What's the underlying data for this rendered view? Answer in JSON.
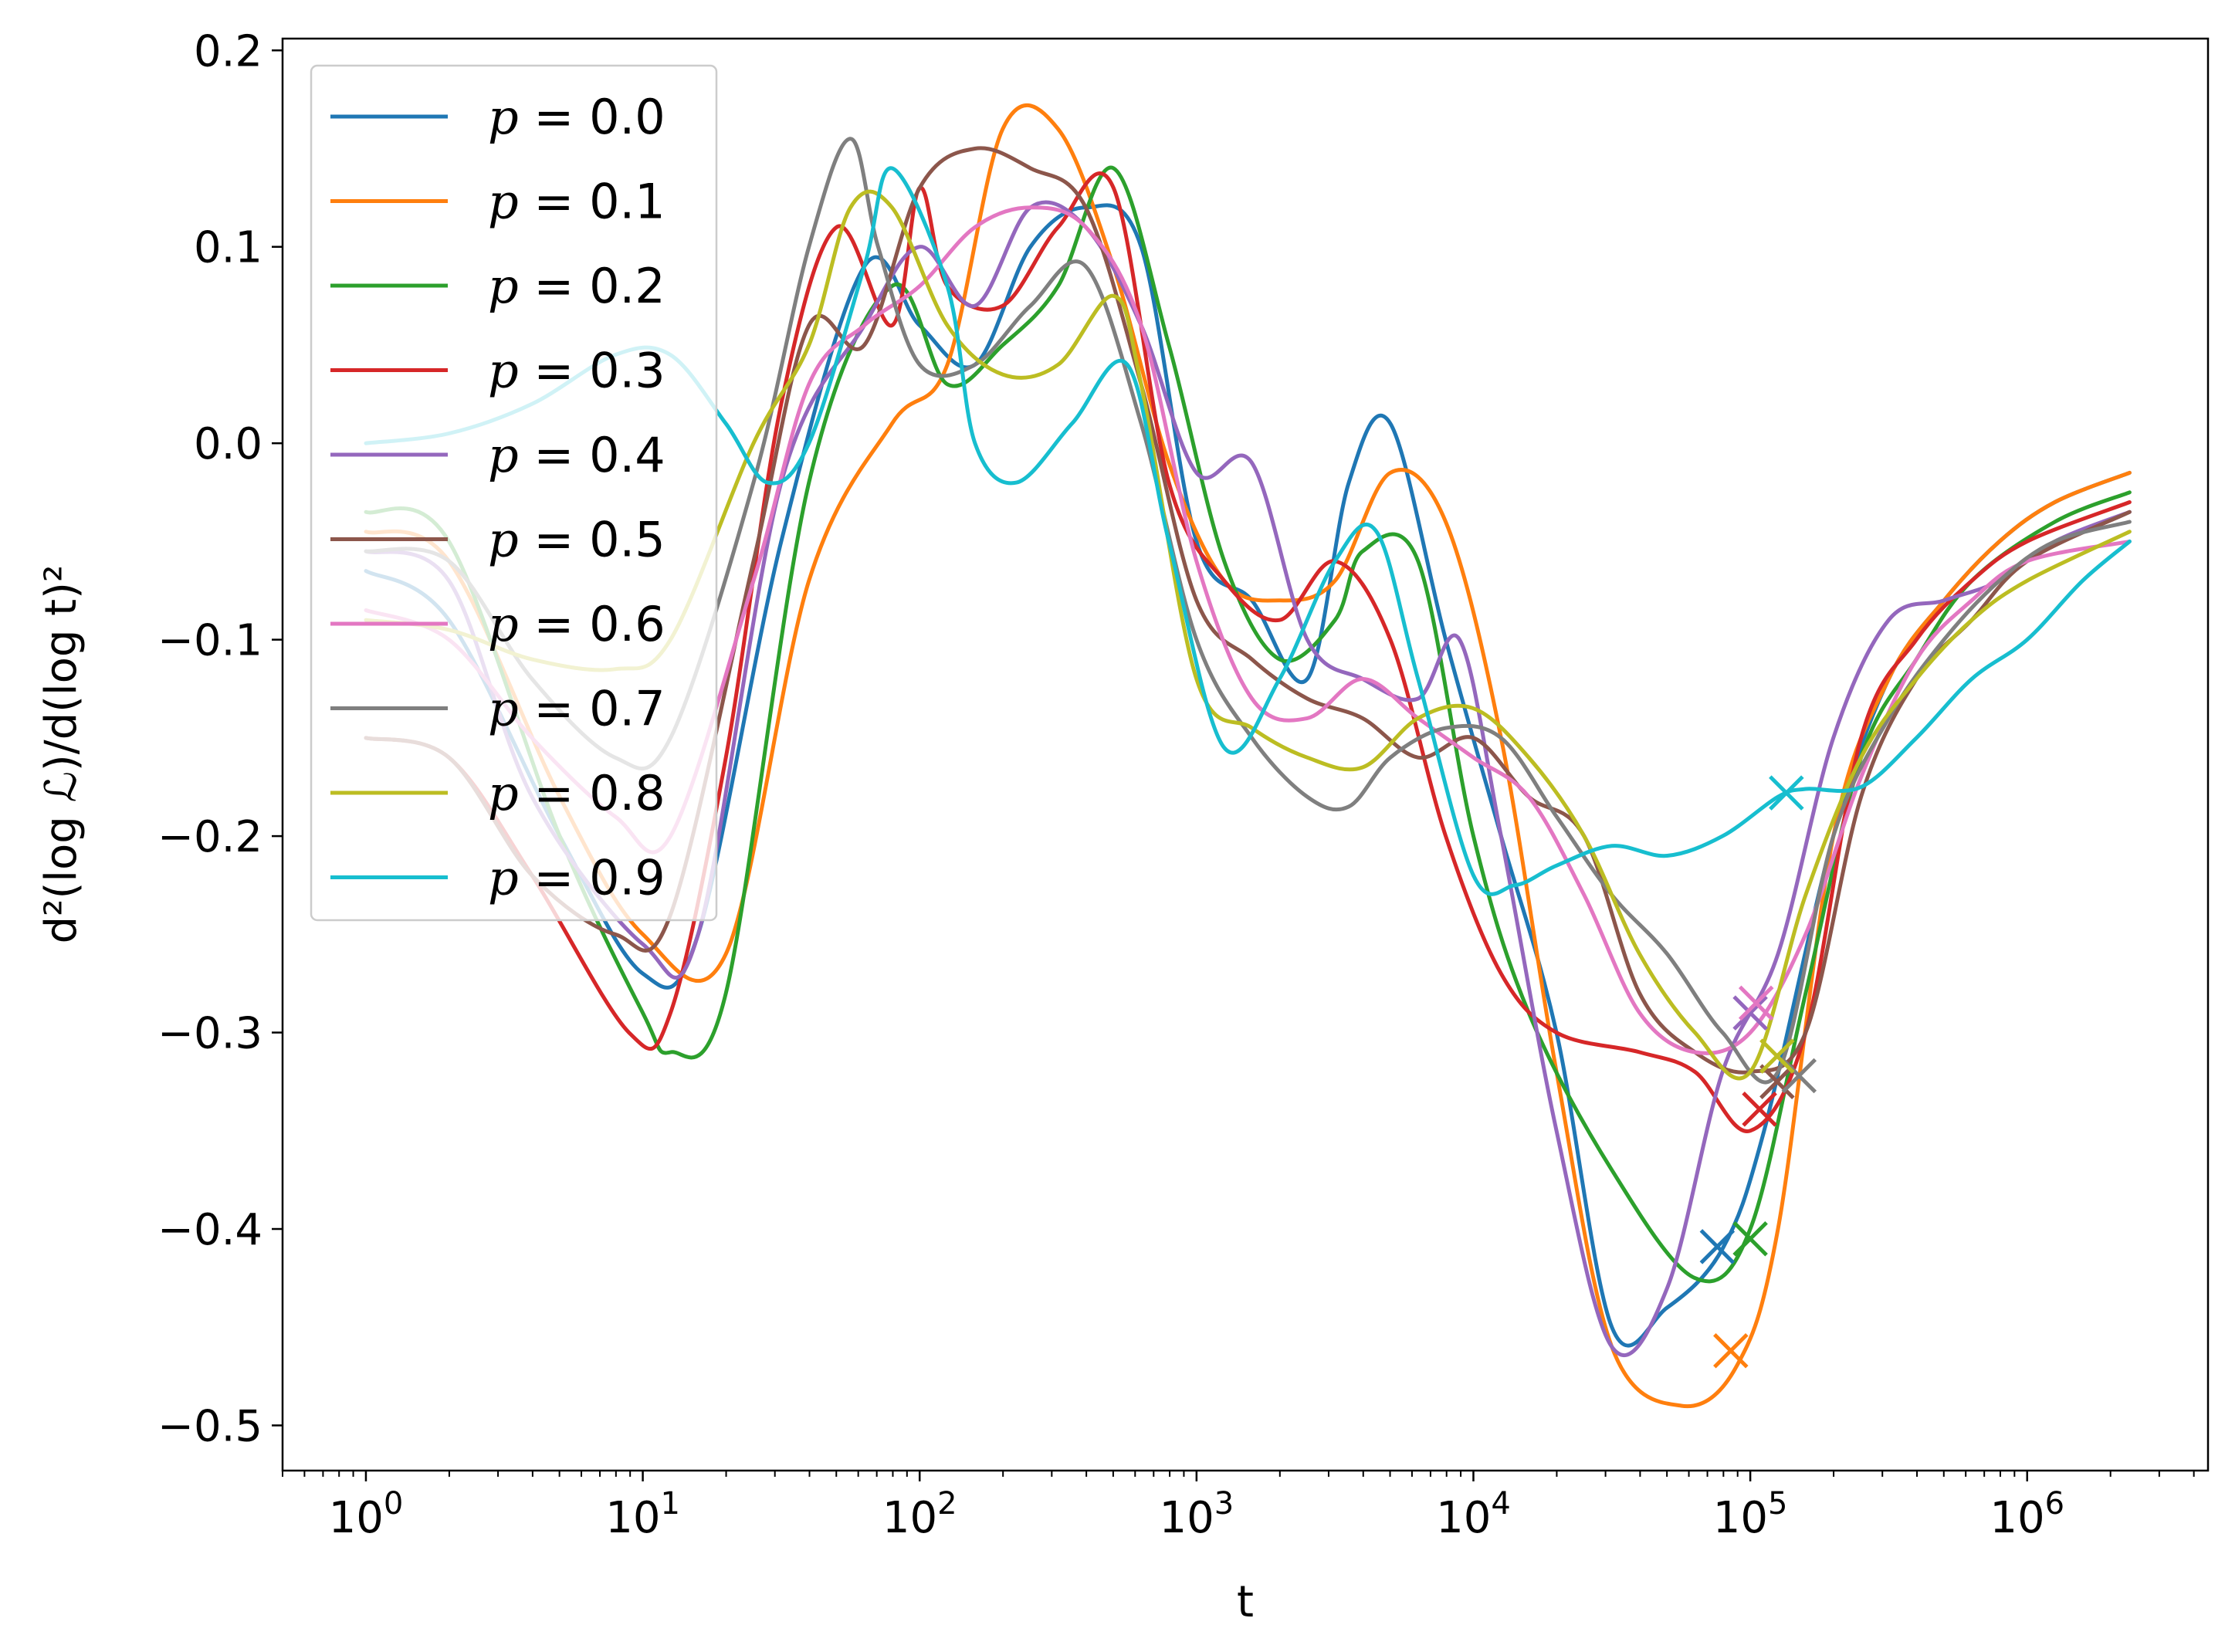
{
  "chart_data": {
    "type": "line",
    "title": "",
    "xlabel": "t",
    "ylabel": "d²(log ℒ)/d(log t)²",
    "xscale": "log",
    "xlim": [
      0.5,
      4500000
    ],
    "ylim": [
      -0.523,
      0.206
    ],
    "x_ticks": [
      {
        "value": 1,
        "base": "10",
        "exp": "0"
      },
      {
        "value": 10,
        "base": "10",
        "exp": "1"
      },
      {
        "value": 100,
        "base": "10",
        "exp": "2"
      },
      {
        "value": 1000,
        "base": "10",
        "exp": "3"
      },
      {
        "value": 10000,
        "base": "10",
        "exp": "4"
      },
      {
        "value": 100000,
        "base": "10",
        "exp": "5"
      },
      {
        "value": 1000000,
        "base": "10",
        "exp": "6"
      }
    ],
    "y_ticks": [
      {
        "value": 0.2,
        "label": "0.2"
      },
      {
        "value": 0.1,
        "label": "0.1"
      },
      {
        "value": 0.0,
        "label": "0.0"
      },
      {
        "value": -0.1,
        "label": "−0.1"
      },
      {
        "value": -0.2,
        "label": "−0.2"
      },
      {
        "value": -0.3,
        "label": "−0.3"
      },
      {
        "value": -0.4,
        "label": "−0.4"
      },
      {
        "value": -0.5,
        "label": "−0.5"
      }
    ],
    "grid": false,
    "legend_position": "top-left",
    "series": [
      {
        "name": "p = 0.0",
        "p": "p",
        "rest": " = 0.0",
        "color": "#1f77b4",
        "log10_t": [
          0,
          0.3,
          0.7,
          1.0,
          1.2,
          1.5,
          1.8,
          2.0,
          2.2,
          2.4,
          2.6,
          2.8,
          3.0,
          3.2,
          3.4,
          3.55,
          3.7,
          3.9,
          4.1,
          4.3,
          4.5,
          4.7,
          4.9,
          5.05,
          5.3,
          5.5,
          5.7,
          5.9,
          6.1,
          6.37
        ],
        "y": [
          -0.065,
          -0.09,
          -0.2,
          -0.27,
          -0.25,
          -0.05,
          0.09,
          0.06,
          0.04,
          0.1,
          0.12,
          0.1,
          -0.05,
          -0.08,
          -0.12,
          -0.02,
          0.01,
          -0.1,
          -0.2,
          -0.3,
          -0.45,
          -0.44,
          -0.41,
          -0.35,
          -0.2,
          -0.12,
          -0.08,
          -0.05,
          -0.03,
          -0.015
        ],
        "marker": {
          "t": 76000,
          "y": -0.409
        }
      },
      {
        "name": "p = 0.1",
        "p": "p",
        "rest": " = 0.1",
        "color": "#ff7f0e",
        "log10_t": [
          0,
          0.3,
          0.7,
          1.0,
          1.3,
          1.6,
          1.9,
          2.1,
          2.3,
          2.5,
          2.7,
          2.9,
          3.1,
          3.3,
          3.5,
          3.7,
          3.9,
          4.1,
          4.3,
          4.5,
          4.75,
          4.95,
          5.1,
          5.3,
          5.5,
          5.7,
          5.9,
          6.1,
          6.37
        ],
        "y": [
          -0.045,
          -0.06,
          -0.18,
          -0.25,
          -0.26,
          -0.07,
          0.01,
          0.04,
          0.16,
          0.16,
          0.09,
          -0.01,
          -0.07,
          -0.08,
          -0.07,
          -0.015,
          -0.04,
          -0.15,
          -0.32,
          -0.46,
          -0.49,
          -0.47,
          -0.4,
          -0.2,
          -0.12,
          -0.08,
          -0.05,
          -0.03,
          -0.015
        ],
        "marker": {
          "t": 85000,
          "y": -0.462
        }
      },
      {
        "name": "p = 0.2",
        "p": "p",
        "rest": " = 0.2",
        "color": "#2ca02c",
        "log10_t": [
          0,
          0.3,
          0.7,
          1.0,
          1.1,
          1.3,
          1.6,
          1.9,
          2.1,
          2.3,
          2.5,
          2.7,
          2.9,
          3.1,
          3.3,
          3.5,
          3.6,
          3.8,
          4.0,
          4.2,
          4.5,
          4.8,
          5.0,
          5.2,
          5.4,
          5.6,
          5.8,
          6.1,
          6.37
        ],
        "y": [
          -0.035,
          -0.05,
          -0.2,
          -0.29,
          -0.31,
          -0.28,
          -0.02,
          0.08,
          0.03,
          0.05,
          0.08,
          0.14,
          0.05,
          -0.06,
          -0.11,
          -0.09,
          -0.055,
          -0.06,
          -0.2,
          -0.29,
          -0.37,
          -0.425,
          -0.4,
          -0.28,
          -0.16,
          -0.11,
          -0.07,
          -0.04,
          -0.025
        ],
        "marker": {
          "t": 100000,
          "y": -0.405
        }
      },
      {
        "name": "p = 0.3",
        "p": "p",
        "rest": " = 0.3",
        "color": "#d62728",
        "log10_t": [
          0,
          0.3,
          0.6,
          0.95,
          1.1,
          1.3,
          1.5,
          1.7,
          1.9,
          2.0,
          2.1,
          2.3,
          2.5,
          2.7,
          2.9,
          3.1,
          3.3,
          3.5,
          3.7,
          3.9,
          4.1,
          4.3,
          4.6,
          4.8,
          5.0,
          5.2,
          5.4,
          5.6,
          5.8,
          6.0,
          6.37
        ],
        "y": [
          -0.15,
          -0.16,
          -0.22,
          -0.3,
          -0.29,
          -0.16,
          0.02,
          0.11,
          0.06,
          0.13,
          0.08,
          0.07,
          0.11,
          0.13,
          -0.02,
          -0.07,
          -0.09,
          -0.06,
          -0.1,
          -0.2,
          -0.27,
          -0.3,
          -0.31,
          -0.32,
          -0.35,
          -0.3,
          -0.15,
          -0.1,
          -0.07,
          -0.05,
          -0.03
        ],
        "marker": {
          "t": 108000,
          "y": -0.339
        }
      },
      {
        "name": "p = 0.4",
        "p": "p",
        "rest": " = 0.4",
        "color": "#9467bd",
        "log10_t": [
          0,
          0.3,
          0.6,
          1.0,
          1.2,
          1.5,
          1.8,
          2.0,
          2.2,
          2.4,
          2.6,
          2.8,
          3.0,
          3.2,
          3.4,
          3.6,
          3.8,
          3.95,
          4.1,
          4.3,
          4.5,
          4.7,
          4.9,
          5.1,
          5.3,
          5.5,
          5.7,
          5.9,
          6.1,
          6.37
        ],
        "y": [
          -0.055,
          -0.07,
          -0.18,
          -0.255,
          -0.25,
          -0.02,
          0.06,
          0.1,
          0.07,
          0.12,
          0.11,
          0.06,
          -0.015,
          -0.01,
          -0.1,
          -0.12,
          -0.13,
          -0.1,
          -0.2,
          -0.35,
          -0.46,
          -0.43,
          -0.32,
          -0.26,
          -0.15,
          -0.09,
          -0.08,
          -0.07,
          -0.05,
          -0.035
        ],
        "marker": {
          "t": 100000,
          "y": -0.29
        }
      },
      {
        "name": "p = 0.5",
        "p": "p",
        "rest": " = 0.5",
        "color": "#8c564b",
        "log10_t": [
          0,
          0.3,
          0.6,
          0.9,
          1.1,
          1.4,
          1.6,
          1.8,
          2.0,
          2.2,
          2.4,
          2.6,
          2.8,
          3.0,
          3.2,
          3.4,
          3.6,
          3.8,
          4.0,
          4.2,
          4.4,
          4.6,
          4.8,
          5.0,
          5.2,
          5.4,
          5.6,
          5.8,
          6.0,
          6.37
        ],
        "y": [
          -0.15,
          -0.16,
          -0.22,
          -0.25,
          -0.24,
          -0.06,
          0.06,
          0.05,
          0.13,
          0.15,
          0.14,
          0.12,
          0.03,
          -0.08,
          -0.11,
          -0.13,
          -0.14,
          -0.16,
          -0.15,
          -0.18,
          -0.2,
          -0.28,
          -0.31,
          -0.32,
          -0.3,
          -0.18,
          -0.12,
          -0.09,
          -0.06,
          -0.035
        ],
        "marker": {
          "t": 125000,
          "y": -0.325
        }
      },
      {
        "name": "p = 0.6",
        "p": "p",
        "rest": " = 0.6",
        "color": "#e377c2",
        "log10_t": [
          0,
          0.3,
          0.6,
          0.9,
          1.1,
          1.4,
          1.6,
          1.8,
          2.0,
          2.2,
          2.4,
          2.6,
          2.8,
          3.0,
          3.2,
          3.4,
          3.6,
          3.8,
          4.0,
          4.2,
          4.4,
          4.6,
          4.8,
          5.0,
          5.2,
          5.4,
          5.6,
          5.8,
          6.0,
          6.37
        ],
        "y": [
          -0.085,
          -0.1,
          -0.15,
          -0.19,
          -0.2,
          -0.07,
          0.03,
          0.06,
          0.08,
          0.11,
          0.12,
          0.11,
          0.06,
          -0.06,
          -0.13,
          -0.14,
          -0.12,
          -0.14,
          -0.16,
          -0.18,
          -0.23,
          -0.29,
          -0.31,
          -0.3,
          -0.25,
          -0.17,
          -0.11,
          -0.08,
          -0.06,
          -0.05
        ],
        "marker": {
          "t": 105000,
          "y": -0.285
        }
      },
      {
        "name": "p = 0.7",
        "p": "p",
        "rest": " = 0.7",
        "color": "#7f7f7f",
        "log10_t": [
          0,
          0.3,
          0.6,
          0.9,
          1.1,
          1.4,
          1.6,
          1.75,
          1.85,
          2.0,
          2.2,
          2.4,
          2.6,
          2.8,
          3.0,
          3.2,
          3.4,
          3.55,
          3.7,
          3.9,
          4.1,
          4.3,
          4.5,
          4.7,
          4.9,
          5.1,
          5.3,
          5.5,
          5.7,
          5.9,
          6.1,
          6.37
        ],
        "y": [
          -0.055,
          -0.06,
          -0.12,
          -0.16,
          -0.15,
          -0.02,
          0.1,
          0.155,
          0.1,
          0.04,
          0.04,
          0.07,
          0.09,
          0.01,
          -0.1,
          -0.15,
          -0.18,
          -0.185,
          -0.16,
          -0.145,
          -0.15,
          -0.19,
          -0.23,
          -0.26,
          -0.3,
          -0.32,
          -0.2,
          -0.14,
          -0.1,
          -0.07,
          -0.05,
          -0.04
        ],
        "marker": {
          "t": 150000,
          "y": -0.322
        }
      },
      {
        "name": "p = 0.8",
        "p": "p",
        "rest": " = 0.8",
        "color": "#bcbd22",
        "log10_t": [
          0,
          0.3,
          0.6,
          0.9,
          1.1,
          1.4,
          1.6,
          1.75,
          1.9,
          2.1,
          2.3,
          2.5,
          2.7,
          2.8,
          3.0,
          3.2,
          3.4,
          3.6,
          3.8,
          4.0,
          4.2,
          4.4,
          4.6,
          4.8,
          5.0,
          5.2,
          5.4,
          5.6,
          5.8,
          6.0,
          6.37
        ],
        "y": [
          -0.09,
          -0.095,
          -0.11,
          -0.115,
          -0.1,
          0.0,
          0.05,
          0.12,
          0.12,
          0.06,
          0.035,
          0.04,
          0.075,
          0.03,
          -0.12,
          -0.145,
          -0.16,
          -0.165,
          -0.14,
          -0.135,
          -0.16,
          -0.2,
          -0.26,
          -0.3,
          -0.32,
          -0.23,
          -0.16,
          -0.12,
          -0.09,
          -0.07,
          -0.045
        ],
        "marker": {
          "t": 125000,
          "y": -0.312
        }
      },
      {
        "name": "p = 0.9",
        "p": "p",
        "rest": " = 0.9",
        "color": "#17becf",
        "log10_t": [
          0,
          0.3,
          0.6,
          0.9,
          1.1,
          1.3,
          1.45,
          1.6,
          1.8,
          1.9,
          2.1,
          2.2,
          2.35,
          2.55,
          2.75,
          2.9,
          3.1,
          3.3,
          3.5,
          3.65,
          3.8,
          4.0,
          4.15,
          4.3,
          4.5,
          4.7,
          4.9,
          5.1,
          5.2,
          5.4,
          5.6,
          5.8,
          6.0,
          6.2,
          6.37
        ],
        "y": [
          0.0,
          0.005,
          0.02,
          0.045,
          0.045,
          0.01,
          -0.02,
          0.0,
          0.09,
          0.14,
          0.08,
          0.0,
          -0.02,
          0.01,
          0.04,
          -0.05,
          -0.155,
          -0.12,
          -0.06,
          -0.045,
          -0.12,
          -0.22,
          -0.225,
          -0.215,
          -0.205,
          -0.21,
          -0.2,
          -0.18,
          -0.176,
          -0.175,
          -0.15,
          -0.12,
          -0.1,
          -0.07,
          -0.05
        ],
        "marker": {
          "t": 135000,
          "y": -0.178
        }
      }
    ]
  }
}
